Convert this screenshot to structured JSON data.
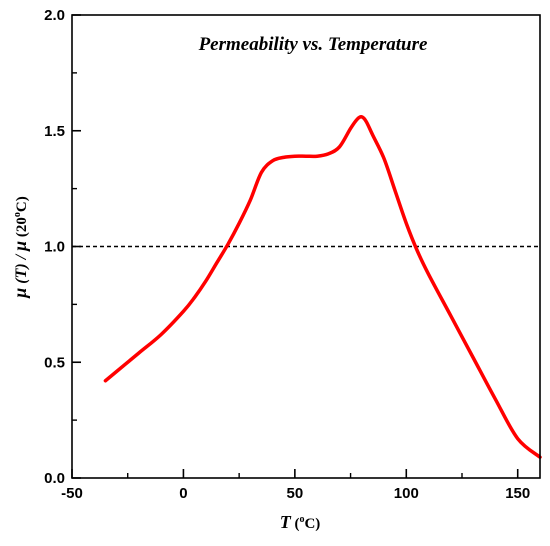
{
  "chart_data": {
    "type": "line",
    "title": "Permeability vs. Temperature",
    "xlabel": {
      "var": "T",
      "unit_open": " (",
      "unit_sup": "o",
      "unit_rest": "C)"
    },
    "ylabel": {
      "mu1": "μ",
      "mid": " (T) / ",
      "mu2": "μ",
      "tail_pre": " (20",
      "tail_sup": "o",
      "tail_post": "C)"
    },
    "xlim": [
      -50,
      160
    ],
    "ylim": [
      0.0,
      2.0
    ],
    "xticks": [
      -50,
      0,
      50,
      100,
      150
    ],
    "yticks": [
      0.0,
      0.5,
      1.0,
      1.5,
      2.0
    ],
    "xtick_labels": [
      "-50",
      "0",
      "50",
      "100",
      "150"
    ],
    "ytick_labels": [
      "0.0",
      "0.5",
      "1.0",
      "1.5",
      "2.0"
    ],
    "grid": false,
    "reference_line": {
      "y": 1.0,
      "style": "dashed",
      "color": "#000000"
    },
    "series": [
      {
        "color": "#ff0000",
        "x": [
          -35,
          -30,
          -20,
          -10,
          0,
          5,
          10,
          15,
          20,
          25,
          30,
          35,
          40,
          45,
          50,
          55,
          60,
          65,
          70,
          75,
          78,
          80,
          82,
          85,
          90,
          95,
          100,
          105,
          110,
          120,
          130,
          140,
          150,
          160
        ],
        "y": [
          0.42,
          0.46,
          0.54,
          0.62,
          0.72,
          0.78,
          0.85,
          0.93,
          1.01,
          1.1,
          1.2,
          1.32,
          1.37,
          1.385,
          1.39,
          1.39,
          1.39,
          1.4,
          1.43,
          1.51,
          1.55,
          1.56,
          1.54,
          1.48,
          1.38,
          1.24,
          1.1,
          0.98,
          0.88,
          0.7,
          0.52,
          0.34,
          0.17,
          0.09
        ]
      }
    ]
  }
}
